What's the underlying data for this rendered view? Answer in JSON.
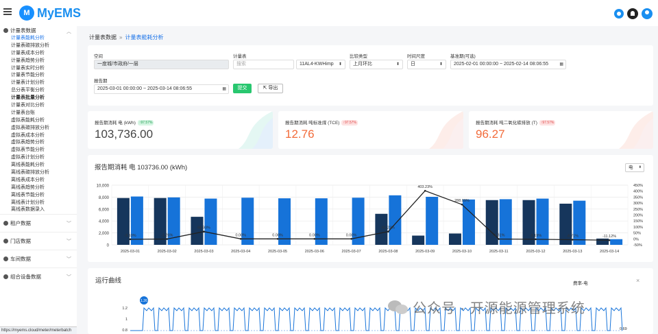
{
  "app": {
    "name": "MyEMS"
  },
  "sidebar": {
    "groups": [
      {
        "label": "计量表数据",
        "expanded": true,
        "items": [
          {
            "label": "计量表能耗分析",
            "active": true
          },
          {
            "label": "计量表碳排放分析"
          },
          {
            "label": "计量表成本分析"
          },
          {
            "label": "计量表趋势分析"
          },
          {
            "label": "计量表实时分析"
          },
          {
            "label": "计量表节能分析"
          },
          {
            "label": "计量表计划分析"
          },
          {
            "label": "总分表平衡分析"
          },
          {
            "label": "计量表批量分析",
            "bold": true
          },
          {
            "label": "计量表对比分析"
          },
          {
            "label": "计量表台账"
          },
          {
            "label": "虚拟表能耗分析"
          },
          {
            "label": "虚拟表碳排放分析"
          },
          {
            "label": "虚拟表成本分析"
          },
          {
            "label": "虚拟表趋势分析"
          },
          {
            "label": "虚拟表节能分析"
          },
          {
            "label": "虚拟表计划分析"
          },
          {
            "label": "离线表能耗分析"
          },
          {
            "label": "离线表碳排放分析"
          },
          {
            "label": "离线表成本分析"
          },
          {
            "label": "离线表趋势分析"
          },
          {
            "label": "离线表节能分析"
          },
          {
            "label": "离线表计划分析"
          },
          {
            "label": "离线表数据录入"
          }
        ]
      },
      {
        "label": "租户数据"
      },
      {
        "label": "门店数据"
      },
      {
        "label": "车间数据"
      },
      {
        "label": "组合设备数据"
      }
    ],
    "status_url": "https://myems.cloud/meter/meterbatch"
  },
  "breadcrumb": {
    "parent": "计量表数据",
    "current": "计量表能耗分析"
  },
  "filters": {
    "space": {
      "label": "空间",
      "value": "一度城/市政府/一层"
    },
    "meter": {
      "label": "计量表",
      "placeholder": "搜索",
      "value": "11AL4-KWHimp"
    },
    "compare": {
      "label": "比较类型",
      "value": "上月环比"
    },
    "period": {
      "label": "时间尺度",
      "value": "日"
    },
    "base_period": {
      "label": "基准期(可选)",
      "value": "2025-02-01 00:00:00 ~ 2025-02-14 08:06:55"
    },
    "report_period": {
      "label": "报告期",
      "value": "2025-03-01 00:00:00 ~ 2025-03-14 08:06:55"
    },
    "submit_label": "提交",
    "export_label": "导出"
  },
  "stats": [
    {
      "title": "报告期消耗 电 (kWh)",
      "badge": "↑97.57%",
      "badge_color": "green",
      "value": "103,736.00"
    },
    {
      "title": "报告期消耗 吨标准煤 (TCE)",
      "badge": "↑97.57%",
      "badge_color": "red",
      "value": "12.76"
    },
    {
      "title": "报告期消耗 吨二氧化碳排放 (T)",
      "badge": "↑97.57%",
      "badge_color": "red",
      "value": "96.27"
    }
  ],
  "chart_panel": {
    "title": "报告期消耗 电 103736.00 (kWh)",
    "selector": "电"
  },
  "chart_data": {
    "type": "bar",
    "categories": [
      "2025-03-01",
      "2025-03-02",
      "2025-03-03",
      "2025-03-04",
      "2025-03-05",
      "2025-03-06",
      "2025-03-07",
      "2025-03-08",
      "2025-03-09",
      "2025-03-10",
      "2025-03-11",
      "2025-03-12",
      "2025-03-13",
      "2025-03-14"
    ],
    "series": [
      {
        "kind": "bar",
        "color": "#16365c",
        "values": [
          7850,
          7850,
          4700,
          0,
          0,
          0,
          0,
          5200,
          1550,
          1900,
          7500,
          7500,
          6900,
          1050
        ]
      },
      {
        "kind": "bar",
        "color": "#1673d9",
        "values": [
          8100,
          7950,
          7750,
          7900,
          7800,
          7800,
          7900,
          8300,
          8050,
          7600,
          7650,
          7750,
          7400,
          950
        ]
      },
      {
        "kind": "line",
        "color": "#222222",
        "values": [
          -3.1,
          -1.26,
          60.93,
          0,
          0,
          0,
          0,
          61.23,
          403.23,
          288.09,
          -1.31,
          -3.19,
          -6.71,
          -11.12
        ]
      }
    ],
    "data_labels": [
      "-3.10%",
      "-1.26%",
      "60.93%",
      "0.00%",
      "0.00%",
      "0.00%",
      "0.00%",
      "61.23%",
      "403.23%",
      "288.09%",
      "-1.31%",
      "-3.19%",
      "-6.71%",
      "-11.12%"
    ],
    "y_ticks": [
      "10,000",
      "8,000",
      "6,000",
      "4,000",
      "2,000",
      "0"
    ],
    "y2_ticks": [
      "450%",
      "400%",
      "350%",
      "300%",
      "250%",
      "200%",
      "150%",
      "100%",
      "50%",
      "0%",
      "-50%"
    ],
    "ylim": [
      0,
      10000
    ],
    "y2lim": [
      -50,
      450
    ],
    "grid": true
  },
  "curve_panel": {
    "title": "运行曲线",
    "legend": "费率-电",
    "close": "×",
    "y_ticks": [
      "1.2",
      "1",
      "0.8"
    ],
    "marker_top": "1.26",
    "marker_right": "0.69"
  },
  "watermark": {
    "text": "公众号 · 开源能源管理系统"
  }
}
